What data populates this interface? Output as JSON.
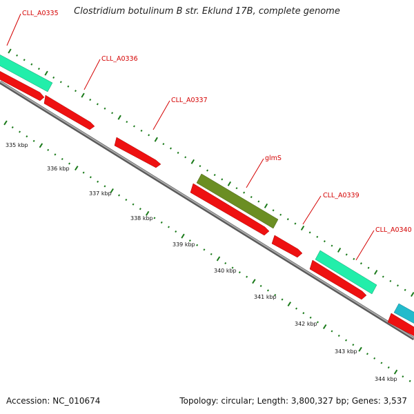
{
  "title": "Clostridium botulinum B str. Eklund 17B, complete genome",
  "footer": {
    "accession": "Accession: NC_010674",
    "summary": "Topology: circular; Length: 3,800,327 bp; Genes: 3,537"
  },
  "colors": {
    "cds_red": "#ee1111",
    "gene_teal": "#22eeaa",
    "gene_olive": "#6b8e23",
    "gene_cyan": "#22bbcc",
    "backbone": "#888888",
    "tick_green": "#1a7a1a",
    "label_red": "#d40000"
  },
  "genes": [
    {
      "label": "CLL_A0335"
    },
    {
      "label": "CLL_A0336"
    },
    {
      "label": "CLL_A0337"
    },
    {
      "label": "glmS"
    },
    {
      "label": "CLL_A0339"
    },
    {
      "label": "CLL_A0340"
    }
  ],
  "ruler": [
    "335 kbp",
    "336 kbp",
    "337 kbp",
    "338 kbp",
    "339 kbp",
    "340 kbp",
    "341 kbp",
    "342 kbp",
    "343 kbp",
    "344 kbp"
  ]
}
